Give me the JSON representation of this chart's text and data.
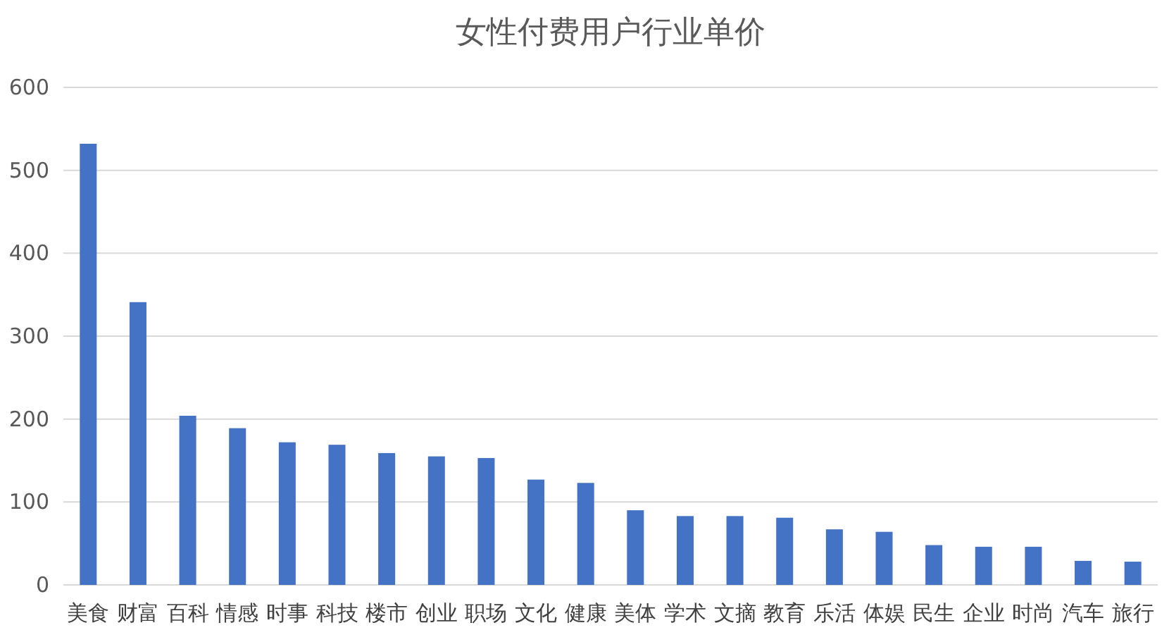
{
  "chart_data": {
    "type": "bar",
    "title": "女性付费用户行业单价",
    "categories": [
      "美食",
      "财富",
      "百科",
      "情感",
      "时事",
      "科技",
      "楼市",
      "创业",
      "职场",
      "文化",
      "健康",
      "美体",
      "学术",
      "文摘",
      "教育",
      "乐活",
      "体娱",
      "民生",
      "企业",
      "时尚",
      "汽车",
      "旅行"
    ],
    "values": [
      532,
      341,
      204,
      189,
      172,
      169,
      159,
      155,
      153,
      127,
      123,
      90,
      83,
      83,
      81,
      67,
      64,
      48,
      46,
      46,
      29,
      28
    ],
    "color": "#4472c4",
    "ylim": [
      0,
      600
    ],
    "yticks": [
      0,
      100,
      200,
      300,
      400,
      500,
      600
    ],
    "grid": "y"
  }
}
